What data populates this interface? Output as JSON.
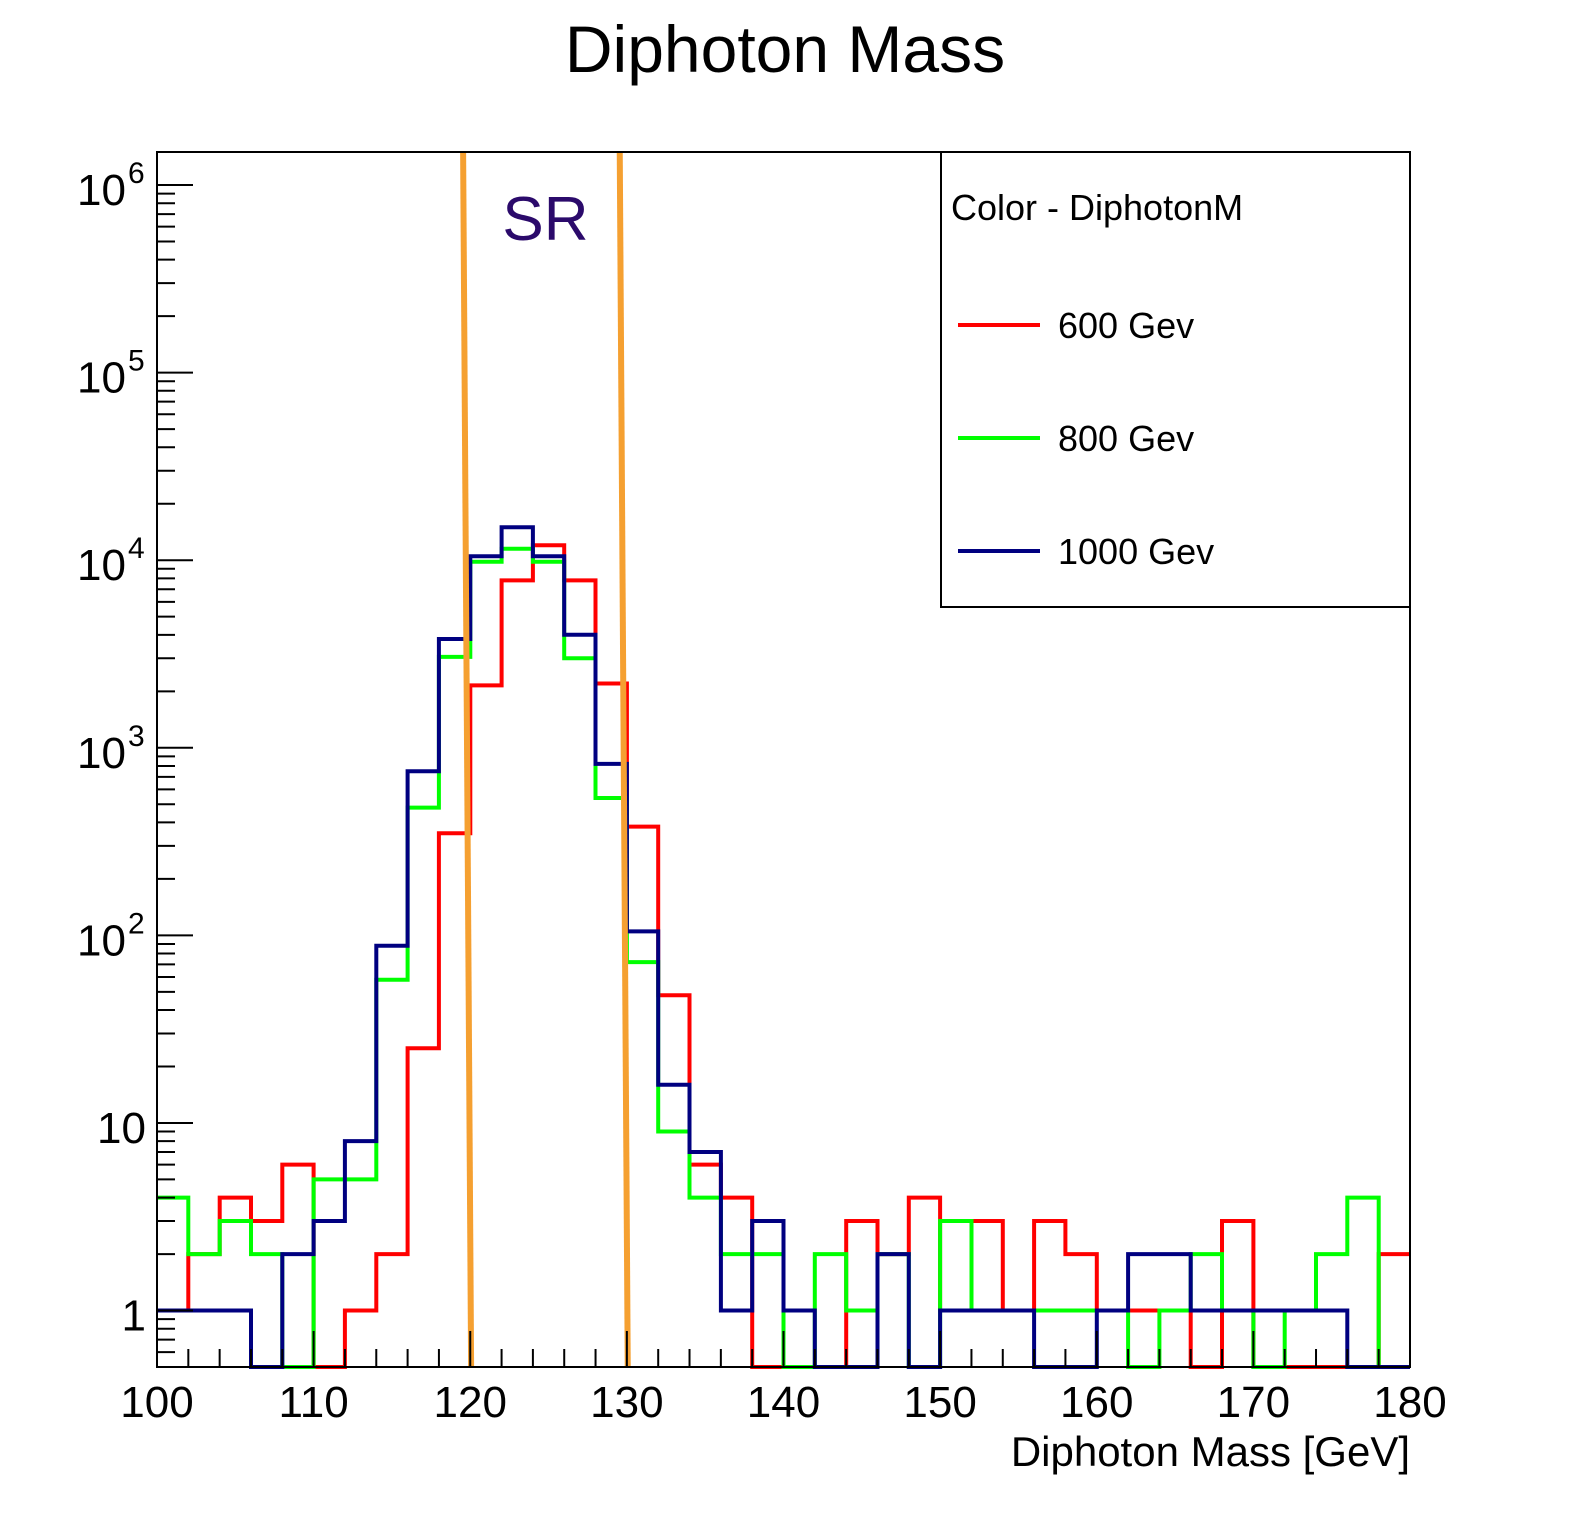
{
  "chart_data": {
    "type": "histogram",
    "title": "Diphoton Mass",
    "xlabel": "Diphoton Mass [GeV]",
    "ylabel": "",
    "xlim": [
      100,
      180
    ],
    "ylim": [
      0.5,
      1500000
    ],
    "yscale": "log",
    "bin_width": 2,
    "x_ticks": [
      "100",
      "110",
      "120",
      "130",
      "140",
      "150",
      "160",
      "170",
      "180"
    ],
    "y_ticks": [
      {
        "base": "1",
        "exp": ""
      },
      {
        "base": "10",
        "exp": ""
      },
      {
        "base": "10",
        "exp": "2"
      },
      {
        "base": "10",
        "exp": "3"
      },
      {
        "base": "10",
        "exp": "4"
      },
      {
        "base": "10",
        "exp": "5"
      },
      {
        "base": "10",
        "exp": "6"
      }
    ],
    "signal_region": {
      "label": "SR",
      "x_low": 119.8,
      "x_high": 129.8,
      "color": "#f5a031",
      "label_color": "#2b0a6b"
    },
    "legend": {
      "header": "Color - DiphotonM",
      "position": "top-right"
    },
    "series": [
      {
        "name": "600 Gev",
        "color": "#ff0000",
        "values": [
          1,
          2,
          4,
          3,
          6,
          0,
          1,
          2,
          25,
          350,
          2150,
          7800,
          12000,
          7800,
          2200,
          380,
          48,
          6,
          4,
          0,
          0,
          0,
          3,
          2,
          4,
          1,
          3,
          1,
          3,
          2,
          1,
          1,
          1,
          0,
          3,
          0,
          0,
          0,
          0,
          2
        ]
      },
      {
        "name": "800 Gev",
        "color": "#00ff00",
        "values": [
          4,
          2,
          3,
          2,
          0,
          5,
          5,
          58,
          480,
          3050,
          9800,
          11500,
          9800,
          3000,
          540,
          72,
          9,
          4,
          2,
          2,
          0,
          2,
          1,
          2,
          0,
          3,
          1,
          1,
          1,
          1,
          1,
          0,
          1,
          2,
          1,
          0,
          1,
          2,
          4,
          0
        ]
      },
      {
        "name": "1000 Gev",
        "color": "#000080",
        "values": [
          1,
          1,
          1,
          0,
          2,
          3,
          8,
          88,
          750,
          3800,
          10500,
          15000,
          10500,
          4000,
          820,
          105,
          16,
          7,
          1,
          3,
          1,
          0,
          0,
          2,
          0,
          1,
          1,
          1,
          0,
          0,
          1,
          2,
          2,
          1,
          1,
          1,
          1,
          1,
          0,
          0
        ]
      }
    ]
  }
}
